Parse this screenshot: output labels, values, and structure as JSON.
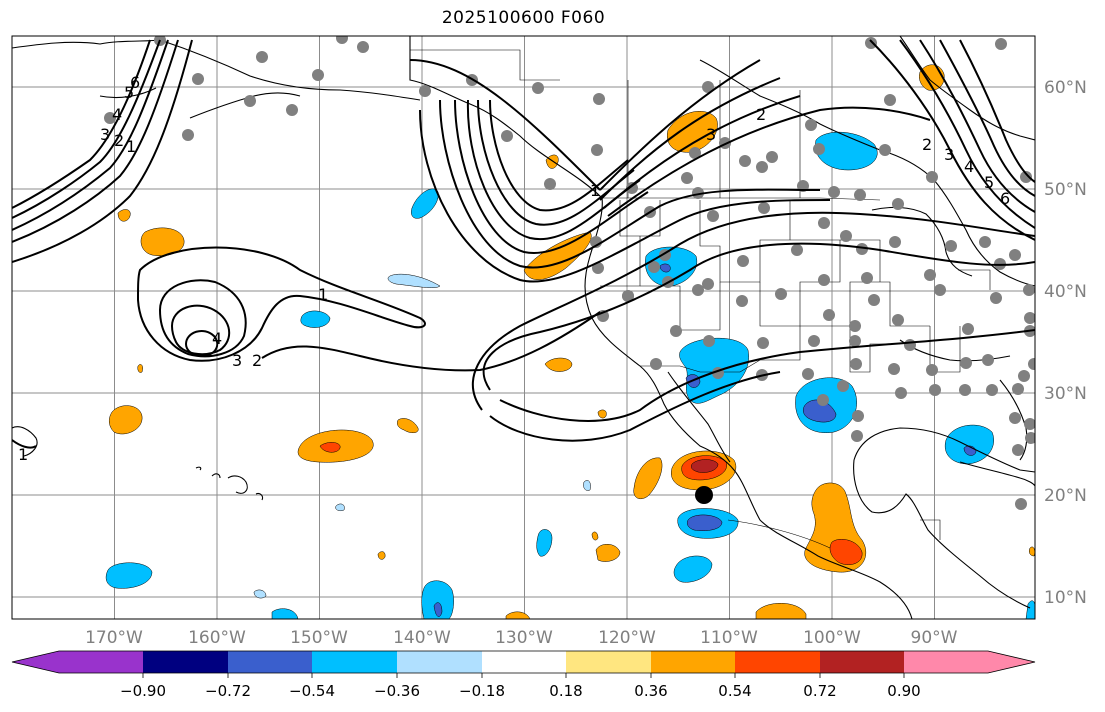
{
  "title": "2025100600 F060",
  "axes": {
    "lon_ticks": [
      "170°W",
      "160°W",
      "150°W",
      "140°W",
      "130°W",
      "120°W",
      "110°W",
      "100°W",
      "90°W"
    ],
    "lat_ticks": [
      "60°N",
      "50°N",
      "40°N",
      "30°N",
      "20°N",
      "10°N"
    ],
    "lon_range": [
      -180,
      -80
    ],
    "lat_range": [
      8,
      65
    ]
  },
  "colorbar": {
    "tick_labels": [
      "−0.90",
      "−0.72",
      "−0.54",
      "−0.36",
      "−0.18",
      "0.18",
      "0.36",
      "0.54",
      "0.72",
      "0.90"
    ],
    "colors": [
      "#9933cc",
      "#000080",
      "#3a5fcd",
      "#00bfff",
      "#b0e0ff",
      "#ffffff",
      "#ffe680",
      "#ffa500",
      "#ff4500",
      "#b22222",
      "#ff88aa"
    ]
  },
  "contour_labels": [
    "1",
    "2",
    "3",
    "4",
    "1",
    "2",
    "3",
    "4",
    "5",
    "6",
    "1",
    "2",
    "3",
    "2",
    "3",
    "4",
    "5",
    "6",
    "1",
    "3",
    "2",
    "1"
  ],
  "marker_color": "#808080",
  "center_marker": {
    "lon": -112,
    "lat": 20
  }
}
